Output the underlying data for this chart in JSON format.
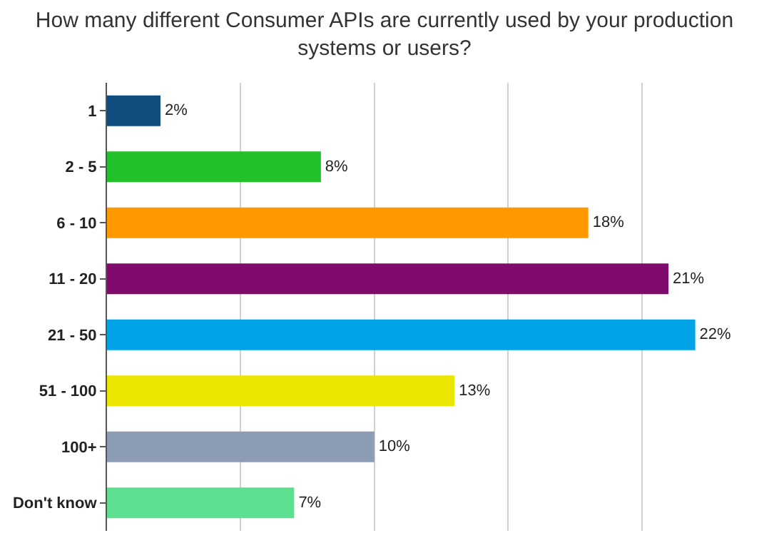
{
  "chart_data": {
    "type": "bar",
    "orientation": "horizontal",
    "title": "How many different Consumer APIs are currently used by your production systems or users?",
    "categories": [
      "1",
      "2 - 5",
      "6 - 10",
      "11 - 20",
      "21 - 50",
      "51 - 100",
      "100+",
      "Don't know"
    ],
    "values": [
      2,
      8,
      18,
      21,
      22,
      13,
      10,
      7
    ],
    "colors": [
      "#0e4d7e",
      "#22c12b",
      "#ff9900",
      "#800b6c",
      "#00a2e8",
      "#ece500",
      "#8c9cb4",
      "#5ddf90"
    ],
    "value_labels": [
      "2%",
      "8%",
      "18%",
      "21%",
      "22%",
      "13%",
      "10%",
      "7%"
    ],
    "xticks": [
      {
        "value": 0,
        "label": null
      },
      {
        "value": 5,
        "label": null
      },
      {
        "value": 10,
        "label": null
      },
      {
        "value": 15,
        "label": null
      },
      {
        "value": 20,
        "label": null
      }
    ],
    "grid": "x",
    "tick_labels": "y"
  }
}
